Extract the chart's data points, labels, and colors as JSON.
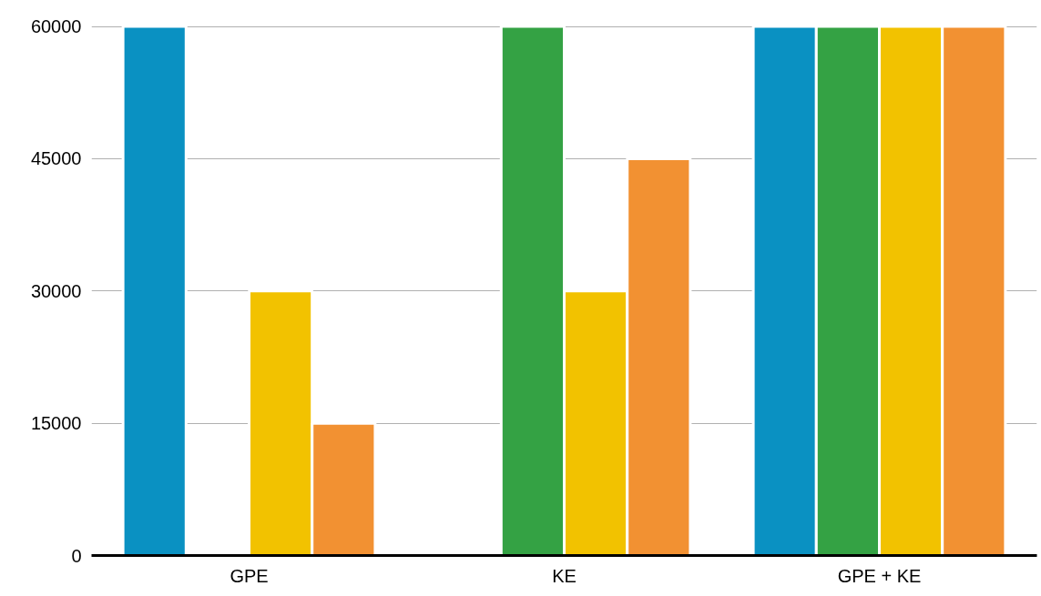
{
  "chart_data": {
    "type": "bar",
    "categories": [
      "GPE",
      "KE",
      "GPE + KE"
    ],
    "series": [
      {
        "color": "#0a91c2",
        "values": [
          60000,
          null,
          60000
        ]
      },
      {
        "color": "#34a244",
        "values": [
          null,
          60000,
          60000
        ]
      },
      {
        "color": "#f2c200",
        "values": [
          30000,
          30000,
          60000
        ]
      },
      {
        "color": "#f29132",
        "values": [
          15000,
          45000,
          60000
        ]
      }
    ],
    "ylim": [
      0,
      60000
    ],
    "yticks": [
      0,
      15000,
      30000,
      45000,
      60000
    ],
    "grid": "y"
  }
}
